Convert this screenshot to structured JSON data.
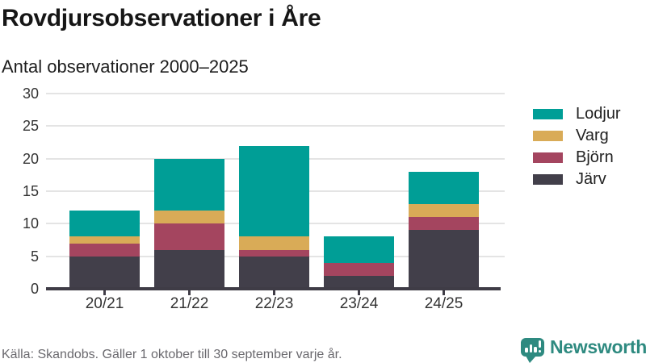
{
  "header": {
    "title": "Rovdjursobservationer i Åre",
    "subtitle": "Antal observationer 2000–2025"
  },
  "chart_data": {
    "type": "bar",
    "stacked": true,
    "title": "Rovdjursobservationer i Åre",
    "subtitle": "Antal observationer 2000–2025",
    "categories": [
      "20/21",
      "21/22",
      "22/23",
      "23/24",
      "24/25"
    ],
    "series": [
      {
        "name": "Järv",
        "color": "#423f4a",
        "values": [
          5,
          6,
          5,
          2,
          9
        ]
      },
      {
        "name": "Björn",
        "color": "#a4455f",
        "values": [
          2,
          4,
          1,
          2,
          2
        ]
      },
      {
        "name": "Varg",
        "color": "#d9ab57",
        "values": [
          1,
          2,
          2,
          0,
          2
        ]
      },
      {
        "name": "Lodjur",
        "color": "#009e96",
        "values": [
          4,
          8,
          14,
          4,
          5
        ]
      }
    ],
    "stack_order": "bottom-to-top",
    "totals": [
      12,
      20,
      22,
      8,
      18
    ],
    "legend_order": [
      "Lodjur",
      "Varg",
      "Björn",
      "Järv"
    ],
    "legend_position": "right",
    "xlabel": "",
    "ylabel": "",
    "ylim": [
      0,
      30
    ],
    "yticks": [
      0,
      5,
      10,
      15,
      20,
      25,
      30
    ],
    "grid": "horizontal"
  },
  "colors": {
    "grid": "#e4e4e4",
    "axis": "#3f3c46",
    "brand_teal": "#2e8a80"
  },
  "footer": {
    "source": "Källa: Skandobs. Gäller 1 oktober till 30 september varje år.",
    "brand": "Newsworthy",
    "brand_icon": "speech-bubble-bar-chart-exclamation"
  }
}
